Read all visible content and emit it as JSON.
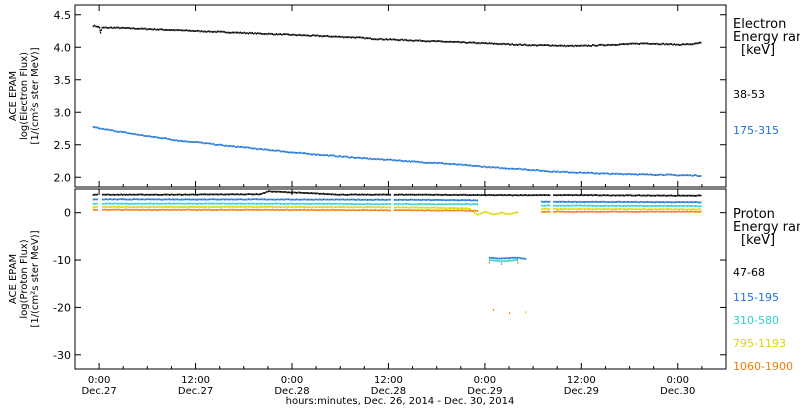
{
  "chart_data": [
    {
      "panel": "electron",
      "type": "scatter",
      "ylabel_lines": [
        "ACE EPAM",
        "log(Electron Flux)",
        "[1/(cm²s ster MeV)]"
      ],
      "ylim": [
        1.85,
        4.65
      ],
      "yticks": [
        2.0,
        2.5,
        3.0,
        3.5,
        4.0,
        4.5
      ],
      "ytick_labels": [
        "2.0",
        "2.5",
        "3.0",
        "3.5",
        "4.0",
        "4.5"
      ],
      "legend": {
        "title_lines": [
          "Electron",
          "Energy ran",
          "[keV]"
        ],
        "entries": [
          {
            "label": "38-53",
            "color": "#000000"
          },
          {
            "label": "175-315",
            "color": "#1a73d6"
          }
        ]
      },
      "series": [
        {
          "color": "#000000",
          "points": [
            [
              -0.8,
              4.33
            ],
            [
              -0.3,
              4.32
            ],
            [
              0.0,
              4.3
            ],
            [
              0.1,
              4.22
            ],
            [
              0.3,
              4.3
            ],
            [
              2,
              4.3
            ],
            [
              4,
              4.29
            ],
            [
              6,
              4.28
            ],
            [
              8,
              4.27
            ],
            [
              10,
              4.26
            ],
            [
              12,
              4.25
            ],
            [
              14,
              4.24
            ],
            [
              16,
              4.23
            ],
            [
              18,
              4.22
            ],
            [
              20,
              4.21
            ],
            [
              22,
              4.2
            ],
            [
              24,
              4.19
            ],
            [
              26,
              4.18
            ],
            [
              28,
              4.17
            ],
            [
              30,
              4.16
            ],
            [
              32,
              4.15
            ],
            [
              34,
              4.13
            ],
            [
              36,
              4.12
            ],
            [
              38,
              4.11
            ],
            [
              40,
              4.1
            ],
            [
              42,
              4.09
            ],
            [
              44,
              4.08
            ],
            [
              46,
              4.07
            ],
            [
              48,
              4.06
            ],
            [
              50,
              4.05
            ],
            [
              52,
              4.04
            ],
            [
              54,
              4.03
            ],
            [
              56,
              4.03
            ],
            [
              58,
              4.02
            ],
            [
              60,
              4.02
            ],
            [
              62,
              4.03
            ],
            [
              64,
              4.04
            ],
            [
              66,
              4.05
            ],
            [
              68,
              4.06
            ],
            [
              70,
              4.05
            ],
            [
              72,
              4.04
            ],
            [
              74,
              4.05
            ],
            [
              74.8,
              4.07
            ]
          ]
        },
        {
          "color": "#1a73d6",
          "points": [
            [
              -0.8,
              2.77
            ],
            [
              0,
              2.75
            ],
            [
              1,
              2.73
            ],
            [
              2,
              2.71
            ],
            [
              4,
              2.67
            ],
            [
              6,
              2.63
            ],
            [
              8,
              2.6
            ],
            [
              10,
              2.56
            ],
            [
              12,
              2.54
            ],
            [
              14,
              2.51
            ],
            [
              16,
              2.48
            ],
            [
              18,
              2.46
            ],
            [
              20,
              2.43
            ],
            [
              22,
              2.41
            ],
            [
              24,
              2.38
            ],
            [
              26,
              2.36
            ],
            [
              28,
              2.34
            ],
            [
              30,
              2.32
            ],
            [
              32,
              2.3
            ],
            [
              34,
              2.28
            ],
            [
              36,
              2.27
            ],
            [
              38,
              2.25
            ],
            [
              40,
              2.23
            ],
            [
              42,
              2.22
            ],
            [
              44,
              2.2
            ],
            [
              46,
              2.18
            ],
            [
              48,
              2.16
            ],
            [
              50,
              2.14
            ],
            [
              52,
              2.13
            ],
            [
              54,
              2.11
            ],
            [
              56,
              2.09
            ],
            [
              58,
              2.08
            ],
            [
              60,
              2.07
            ],
            [
              62,
              2.06
            ],
            [
              64,
              2.05
            ],
            [
              66,
              2.05
            ],
            [
              68,
              2.04
            ],
            [
              70,
              2.04
            ],
            [
              72,
              2.03
            ],
            [
              74,
              2.03
            ],
            [
              74.8,
              2.02
            ]
          ]
        }
      ]
    },
    {
      "panel": "proton",
      "type": "scatter",
      "ylabel_lines": [
        "ACE EPAM",
        "log(Proton Flux)",
        "[1/(cm²s ster MeV)]"
      ],
      "ylim": [
        -33,
        5
      ],
      "yticks": [
        0,
        -10,
        -20,
        -30
      ],
      "ytick_labels": [
        "0",
        "-10",
        "-20",
        "-30"
      ],
      "legend": {
        "title_lines": [
          "Proton",
          "Energy ran",
          "[keV]"
        ],
        "entries": [
          {
            "label": "47-68",
            "color": "#000000"
          },
          {
            "label": "115-195",
            "color": "#1a73d6"
          },
          {
            "label": "310-580",
            "color": "#2ad1d1"
          },
          {
            "label": "795-1193",
            "color": "#d8d800"
          },
          {
            "label": "1060-1900",
            "color": "#f07c00"
          }
        ]
      },
      "series": [
        {
          "color": "#000000",
          "points": [
            [
              -0.8,
              3.8
            ],
            [
              10,
              3.8
            ],
            [
              20,
              3.9
            ],
            [
              21,
              4.5
            ],
            [
              30,
              3.8
            ],
            [
              40,
              3.8
            ],
            [
              48,
              3.7
            ],
            [
              52,
              3.7
            ],
            [
              60,
              3.7
            ],
            [
              70,
              3.6
            ],
            [
              74.8,
              3.6
            ]
          ]
        },
        {
          "color": "#1a73d6",
          "points": [
            [
              -0.8,
              2.8
            ],
            [
              20,
              2.8
            ],
            [
              40,
              2.7
            ],
            [
              47,
              2.6
            ],
            [
              48.5,
              -9.5
            ],
            [
              50,
              -9.7
            ],
            [
              52,
              -9.5
            ],
            [
              53,
              -9.8
            ],
            [
              55,
              2.3
            ],
            [
              74.8,
              2.2
            ]
          ]
        },
        {
          "color": "#2ad1d1",
          "points": [
            [
              -0.8,
              1.9
            ],
            [
              20,
              1.9
            ],
            [
              40,
              1.8
            ],
            [
              47,
              1.8
            ],
            [
              48.5,
              -10.0
            ],
            [
              50,
              -10.3
            ],
            [
              52,
              -10.0
            ],
            [
              55,
              1.5
            ],
            [
              74.8,
              1.4
            ]
          ]
        },
        {
          "color": "#d8d800",
          "points": [
            [
              -0.8,
              1.2
            ],
            [
              20,
              1.2
            ],
            [
              40,
              1.1
            ],
            [
              46,
              0.9
            ],
            [
              47,
              -0.5
            ],
            [
              48,
              0.2
            ],
            [
              49,
              -0.4
            ],
            [
              50,
              0.0
            ],
            [
              51,
              -0.3
            ],
            [
              52,
              0.1
            ],
            [
              53,
              -21.0
            ],
            [
              55,
              0.8
            ],
            [
              74.8,
              0.7
            ]
          ]
        },
        {
          "color": "#f07c00",
          "points": [
            [
              -0.8,
              0.6
            ],
            [
              20,
              0.6
            ],
            [
              40,
              0.5
            ],
            [
              47,
              0.4
            ],
            [
              48.5,
              -10.6
            ],
            [
              49,
              -20.5
            ],
            [
              50,
              -10.9
            ],
            [
              51,
              -21.2
            ],
            [
              52,
              -10.5
            ],
            [
              55,
              0.2
            ],
            [
              74.8,
              0.2
            ]
          ]
        }
      ],
      "gaps_hours": [
        [
          -0.3,
          0.3
        ],
        [
          36.2,
          36.6
        ],
        [
          56.1,
          56.4
        ]
      ]
    }
  ],
  "x_axis": {
    "range_hours": [
      -3,
      78
    ],
    "ticks": [
      {
        "hours": 0,
        "time": "0:00",
        "date": "Dec.27"
      },
      {
        "hours": 12,
        "time": "12:00",
        "date": "Dec.27"
      },
      {
        "hours": 24,
        "time": "0:00",
        "date": "Dec.28"
      },
      {
        "hours": 36,
        "time": "12:00",
        "date": "Dec.28"
      },
      {
        "hours": 48,
        "time": "0:00",
        "date": "Dec.29"
      },
      {
        "hours": 60,
        "time": "12:00",
        "date": "Dec.29"
      },
      {
        "hours": 72,
        "time": "0:00",
        "date": "Dec.30"
      }
    ],
    "xlabel": "hours:minutes, Dec. 26, 2014 - Dec. 30, 2014"
  }
}
